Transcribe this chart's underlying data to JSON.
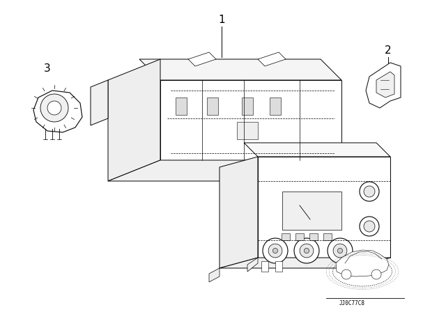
{
  "bg_color": "#ffffff",
  "line_color": "#000000",
  "label_1": "1",
  "label_2": "2",
  "label_3": "3",
  "diagram_id": "JJ0C77C8",
  "fig_width": 6.4,
  "fig_height": 4.48,
  "dpi": 100
}
